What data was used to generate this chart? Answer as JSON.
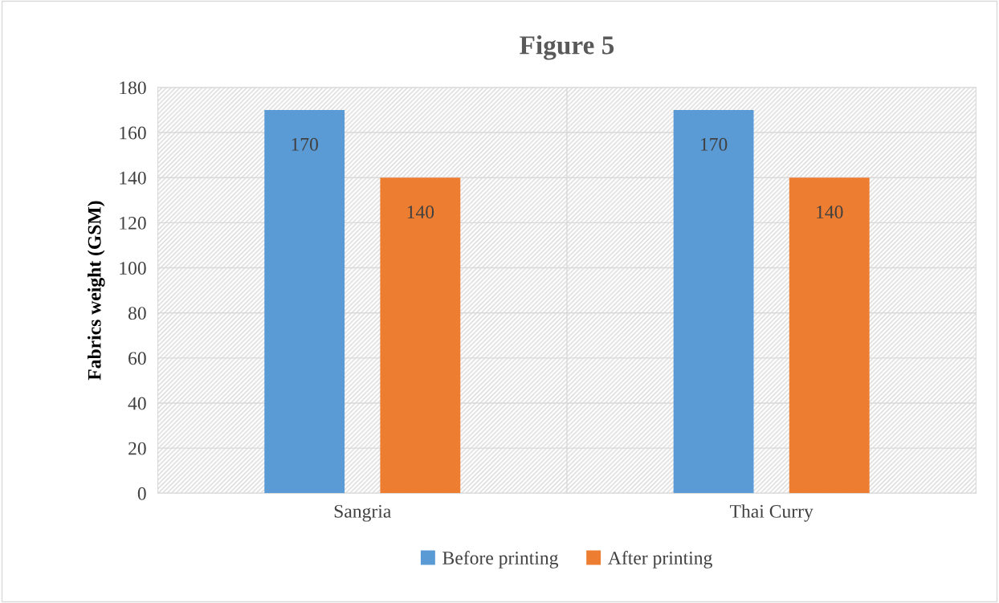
{
  "chart_data": {
    "type": "bar",
    "title": "Figure 5",
    "ylabel": "Fabrics weight (GSM)",
    "categories": [
      "Sangria",
      "Thai Curry"
    ],
    "series": [
      {
        "name": "Before printing",
        "color": "#5b9bd5",
        "values": [
          170,
          170
        ]
      },
      {
        "name": "After printing",
        "color": "#ed7d31",
        "values": [
          140,
          140
        ]
      }
    ],
    "ylim": [
      0,
      180
    ],
    "yticks": [
      0,
      20,
      40,
      60,
      80,
      100,
      120,
      140,
      160,
      180
    ],
    "grid": true,
    "legend": "bottom",
    "data_labels": true
  }
}
